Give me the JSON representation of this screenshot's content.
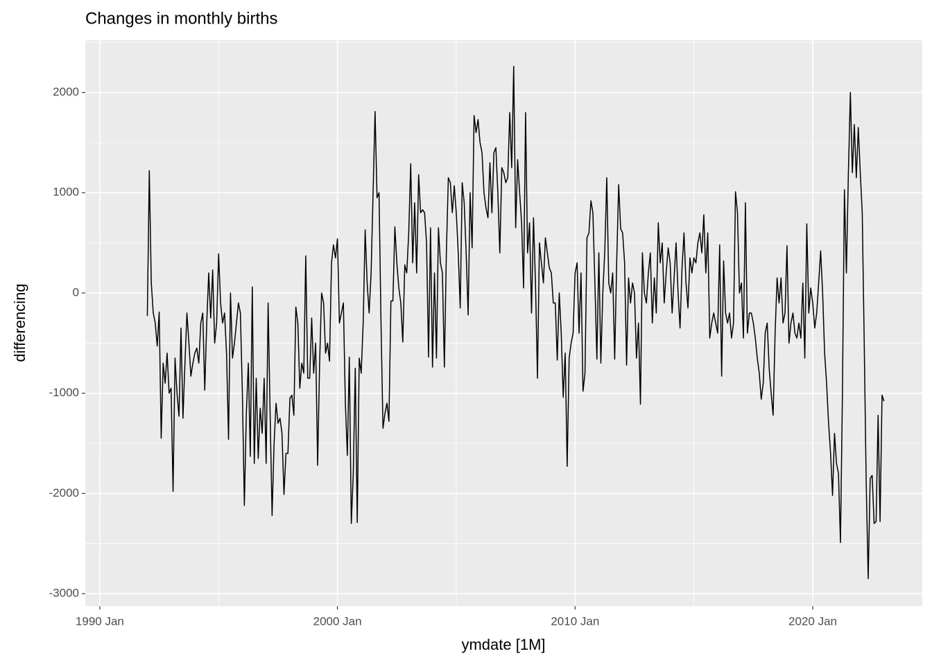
{
  "chart_data": {
    "type": "line",
    "title": "Changes in monthly births",
    "x_label": "ymdate [1M]",
    "y_label": "differencing",
    "xlim": [
      1989.39,
      2024.61
    ],
    "xticks": [
      {
        "value": 1990,
        "label": "1990 Jan"
      },
      {
        "value": 2000,
        "label": "2000 Jan"
      },
      {
        "value": 2010,
        "label": "2010 Jan"
      },
      {
        "value": 2020,
        "label": "2020 Jan"
      }
    ],
    "ylim": [
      -3124,
      2522
    ],
    "yticks": [
      -3000,
      -2000,
      -1000,
      0,
      1000,
      2000
    ],
    "grid": true,
    "x": [
      "1992 Jan",
      "1992 Feb",
      "1992 Mar",
      "1992 Apr",
      "1992 May",
      "1992 Jun",
      "1992 Jul",
      "1992 Aug",
      "1992 Sep",
      "1992 Oct",
      "1992 Nov",
      "1992 Dec",
      "1993 Jan",
      "1993 Feb",
      "1993 Mar",
      "1993 Apr",
      "1993 May",
      "1993 Jun",
      "1993 Jul",
      "1993 Aug",
      "1993 Sep",
      "1993 Oct",
      "1993 Nov",
      "1993 Dec",
      "1994 Jan",
      "1994 Feb",
      "1994 Mar",
      "1994 Apr",
      "1994 May",
      "1994 Jun",
      "1994 Jul",
      "1994 Aug",
      "1994 Sep",
      "1994 Oct",
      "1994 Nov",
      "1994 Dec",
      "1995 Jan",
      "1995 Feb",
      "1995 Mar",
      "1995 Apr",
      "1995 May",
      "1995 Jun",
      "1995 Jul",
      "1995 Aug",
      "1995 Sep",
      "1995 Oct",
      "1995 Nov",
      "1995 Dec",
      "1996 Jan",
      "1996 Feb",
      "1996 Mar",
      "1996 Apr",
      "1996 May",
      "1996 Jun",
      "1996 Jul",
      "1996 Aug",
      "1996 Sep",
      "1996 Oct",
      "1996 Nov",
      "1996 Dec",
      "1997 Jan",
      "1997 Feb",
      "1997 Mar",
      "1997 Apr",
      "1997 May",
      "1997 Jun",
      "1997 Jul",
      "1997 Aug",
      "1997 Sep",
      "1997 Oct",
      "1997 Nov",
      "1997 Dec",
      "1998 Jan",
      "1998 Feb",
      "1998 Mar",
      "1998 Apr",
      "1998 May",
      "1998 Jun",
      "1998 Jul",
      "1998 Aug",
      "1998 Sep",
      "1998 Oct",
      "1998 Nov",
      "1998 Dec",
      "1999 Jan",
      "1999 Feb",
      "1999 Mar",
      "1999 Apr",
      "1999 May",
      "1999 Jun",
      "1999 Jul",
      "1999 Aug",
      "1999 Sep",
      "1999 Oct",
      "1999 Nov",
      "1999 Dec",
      "2000 Jan",
      "2000 Feb",
      "2000 Mar",
      "2000 Apr",
      "2000 May",
      "2000 Jun",
      "2000 Jul",
      "2000 Aug",
      "2000 Sep",
      "2000 Oct",
      "2000 Nov",
      "2000 Dec",
      "2001 Jan",
      "2001 Feb",
      "2001 Mar",
      "2001 Apr",
      "2001 May",
      "2001 Jun",
      "2001 Jul",
      "2001 Aug",
      "2001 Sep",
      "2001 Oct",
      "2001 Nov",
      "2001 Dec",
      "2002 Jan",
      "2002 Feb",
      "2002 Mar",
      "2002 Apr",
      "2002 May",
      "2002 Jun",
      "2002 Jul",
      "2002 Aug",
      "2002 Sep",
      "2002 Oct",
      "2002 Nov",
      "2002 Dec",
      "2003 Jan",
      "2003 Feb",
      "2003 Mar",
      "2003 Apr",
      "2003 May",
      "2003 Jun",
      "2003 Jul",
      "2003 Aug",
      "2003 Sep",
      "2003 Oct",
      "2003 Nov",
      "2003 Dec",
      "2004 Jan",
      "2004 Feb",
      "2004 Mar",
      "2004 Apr",
      "2004 May",
      "2004 Jun",
      "2004 Jul",
      "2004 Aug",
      "2004 Sep",
      "2004 Oct",
      "2004 Nov",
      "2004 Dec",
      "2005 Jan",
      "2005 Feb",
      "2005 Mar",
      "2005 Apr",
      "2005 May",
      "2005 Jun",
      "2005 Jul",
      "2005 Aug",
      "2005 Sep",
      "2005 Oct",
      "2005 Nov",
      "2005 Dec",
      "2006 Jan",
      "2006 Feb",
      "2006 Mar",
      "2006 Apr",
      "2006 May",
      "2006 Jun",
      "2006 Jul",
      "2006 Aug",
      "2006 Sep",
      "2006 Oct",
      "2006 Nov",
      "2006 Dec",
      "2007 Jan",
      "2007 Feb",
      "2007 Mar",
      "2007 Apr",
      "2007 May",
      "2007 Jun",
      "2007 Jul",
      "2007 Aug",
      "2007 Sep",
      "2007 Oct",
      "2007 Nov",
      "2007 Dec",
      "2008 Jan",
      "2008 Feb",
      "2008 Mar",
      "2008 Apr",
      "2008 May",
      "2008 Jun",
      "2008 Jul",
      "2008 Aug",
      "2008 Sep",
      "2008 Oct",
      "2008 Nov",
      "2008 Dec",
      "2009 Jan",
      "2009 Feb",
      "2009 Mar",
      "2009 Apr",
      "2009 May",
      "2009 Jun",
      "2009 Jul",
      "2009 Aug",
      "2009 Sep",
      "2009 Oct",
      "2009 Nov",
      "2009 Dec",
      "2010 Jan",
      "2010 Feb",
      "2010 Mar",
      "2010 Apr",
      "2010 May",
      "2010 Jun",
      "2010 Jul",
      "2010 Aug",
      "2010 Sep",
      "2010 Oct",
      "2010 Nov",
      "2010 Dec",
      "2011 Jan",
      "2011 Feb",
      "2011 Mar",
      "2011 Apr",
      "2011 May",
      "2011 Jun",
      "2011 Jul",
      "2011 Aug",
      "2011 Sep",
      "2011 Oct",
      "2011 Nov",
      "2011 Dec",
      "2012 Jan",
      "2012 Feb",
      "2012 Mar",
      "2012 Apr",
      "2012 May",
      "2012 Jun",
      "2012 Jul",
      "2012 Aug",
      "2012 Sep",
      "2012 Oct",
      "2012 Nov",
      "2012 Dec",
      "2013 Jan",
      "2013 Feb",
      "2013 Mar",
      "2013 Apr",
      "2013 May",
      "2013 Jun",
      "2013 Jul",
      "2013 Aug",
      "2013 Sep",
      "2013 Oct",
      "2013 Nov",
      "2013 Dec",
      "2014 Jan",
      "2014 Feb",
      "2014 Mar",
      "2014 Apr",
      "2014 May",
      "2014 Jun",
      "2014 Jul",
      "2014 Aug",
      "2014 Sep",
      "2014 Oct",
      "2014 Nov",
      "2014 Dec",
      "2015 Jan",
      "2015 Feb",
      "2015 Mar",
      "2015 Apr",
      "2015 May",
      "2015 Jun",
      "2015 Jul",
      "2015 Aug",
      "2015 Sep",
      "2015 Oct",
      "2015 Nov",
      "2015 Dec",
      "2016 Jan",
      "2016 Feb",
      "2016 Mar",
      "2016 Apr",
      "2016 May",
      "2016 Jun",
      "2016 Jul",
      "2016 Aug",
      "2016 Sep",
      "2016 Oct",
      "2016 Nov",
      "2016 Dec",
      "2017 Jan",
      "2017 Feb",
      "2017 Mar",
      "2017 Apr",
      "2017 May",
      "2017 Jun",
      "2017 Jul",
      "2017 Aug",
      "2017 Sep",
      "2017 Oct",
      "2017 Nov",
      "2017 Dec",
      "2018 Jan",
      "2018 Feb",
      "2018 Mar",
      "2018 Apr",
      "2018 May",
      "2018 Jun",
      "2018 Jul",
      "2018 Aug",
      "2018 Sep",
      "2018 Oct",
      "2018 Nov",
      "2018 Dec",
      "2019 Jan",
      "2019 Feb",
      "2019 Mar",
      "2019 Apr",
      "2019 May",
      "2019 Jun",
      "2019 Jul",
      "2019 Aug",
      "2019 Sep",
      "2019 Oct",
      "2019 Nov",
      "2019 Dec",
      "2020 Jan",
      "2020 Feb",
      "2020 Mar",
      "2020 Apr",
      "2020 May",
      "2020 Jun",
      "2020 Jul",
      "2020 Aug",
      "2020 Sep",
      "2020 Oct",
      "2020 Nov",
      "2020 Dec",
      "2021 Jan",
      "2021 Feb",
      "2021 Mar",
      "2021 Apr",
      "2021 May",
      "2021 Jun",
      "2021 Jul",
      "2021 Aug",
      "2021 Sep",
      "2021 Oct",
      "2021 Nov",
      "2021 Dec",
      "2022 Jan",
      "2022 Feb",
      "2022 Mar",
      "2022 Apr",
      "2022 May",
      "2022 Jun",
      "2022 Jul",
      "2022 Aug",
      "2022 Sep",
      "2022 Oct",
      "2022 Nov",
      "2022 Dec",
      "2023 Jan"
    ],
    "series": [
      {
        "color": "#000000",
        "values": [
          -230,
          1220,
          100,
          -200,
          -300,
          -530,
          -190,
          -1450,
          -700,
          -900,
          -600,
          -1000,
          -950,
          -1980,
          -650,
          -1000,
          -1230,
          -350,
          -1250,
          -700,
          -200,
          -500,
          -830,
          -700,
          -600,
          -550,
          -700,
          -300,
          -200,
          -970,
          -300,
          200,
          -250,
          230,
          -500,
          -300,
          390,
          -100,
          -300,
          -200,
          -600,
          -1460,
          0,
          -650,
          -500,
          -300,
          -100,
          -200,
          -1000,
          -2120,
          -1200,
          -700,
          -1630,
          60,
          -1700,
          -850,
          -1650,
          -1150,
          -1400,
          -850,
          -1700,
          -100,
          -1200,
          -2220,
          -1500,
          -1100,
          -1300,
          -1250,
          -1400,
          -2010,
          -1600,
          -1600,
          -1050,
          -1020,
          -1220,
          -140,
          -300,
          -950,
          -700,
          -800,
          370,
          -850,
          -850,
          -250,
          -800,
          -500,
          -1720,
          -700,
          0,
          -100,
          -600,
          -500,
          -680,
          300,
          480,
          350,
          540,
          -300,
          -200,
          -100,
          -1100,
          -1620,
          -640,
          -2300,
          -1800,
          -750,
          -2290,
          -650,
          -800,
          -300,
          630,
          100,
          -200,
          200,
          1000,
          1810,
          950,
          1000,
          -300,
          -1350,
          -1200,
          -1100,
          -1280,
          -80,
          -80,
          660,
          300,
          50,
          -100,
          -490,
          280,
          200,
          600,
          1290,
          300,
          900,
          200,
          1180,
          800,
          830,
          800,
          500,
          -640,
          650,
          -740,
          200,
          -650,
          650,
          300,
          200,
          -740,
          400,
          1150,
          1100,
          800,
          1070,
          800,
          400,
          -150,
          1100,
          900,
          400,
          -220,
          1000,
          450,
          1770,
          1600,
          1730,
          1500,
          1400,
          1000,
          850,
          750,
          1300,
          800,
          1400,
          1450,
          1000,
          400,
          1250,
          1200,
          1100,
          1150,
          1800,
          1250,
          2260,
          650,
          1330,
          1000,
          700,
          50,
          1800,
          400,
          700,
          -200,
          750,
          100,
          -850,
          500,
          300,
          100,
          550,
          400,
          250,
          200,
          -100,
          -100,
          -670,
          0,
          -400,
          -1040,
          -600,
          -1730,
          -650,
          -500,
          -400,
          200,
          300,
          -400,
          200,
          -980,
          -800,
          550,
          600,
          920,
          800,
          100,
          -660,
          400,
          -700,
          0,
          420,
          1150,
          100,
          0,
          200,
          -660,
          300,
          1080,
          640,
          600,
          300,
          -720,
          150,
          -100,
          100,
          0,
          -650,
          -300,
          -1110,
          400,
          0,
          -100,
          200,
          400,
          -300,
          150,
          -200,
          700,
          300,
          500,
          -100,
          200,
          450,
          300,
          -200,
          150,
          500,
          0,
          -350,
          250,
          600,
          100,
          -150,
          350,
          200,
          350,
          300,
          500,
          600,
          400,
          780,
          200,
          600,
          -450,
          -300,
          -200,
          -300,
          -400,
          480,
          -830,
          320,
          -200,
          -300,
          -200,
          -450,
          -300,
          1010,
          800,
          0,
          100,
          -450,
          900,
          -400,
          -200,
          -200,
          -300,
          -450,
          -650,
          -800,
          -1060,
          -900,
          -400,
          -300,
          -750,
          -1000,
          -1220,
          -400,
          150,
          -100,
          150,
          -300,
          -200,
          470,
          -500,
          -300,
          -200,
          -400,
          -450,
          -300,
          -450,
          100,
          -650,
          690,
          -200,
          50,
          -100,
          -350,
          -200,
          100,
          420,
          0,
          -600,
          -900,
          -1300,
          -1600,
          -2020,
          -1400,
          -1700,
          -1800,
          -2490,
          -1000,
          1030,
          200,
          1200,
          2000,
          1200,
          1680,
          1150,
          1650,
          1200,
          800,
          -500,
          -1900,
          -2850,
          -1850,
          -1820,
          -2300,
          -2280,
          -1220,
          -2280,
          -1020,
          -1080
        ]
      }
    ]
  }
}
